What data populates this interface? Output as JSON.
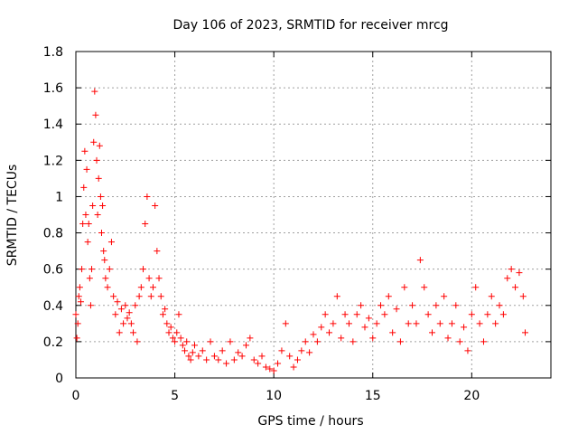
{
  "chart_data": {
    "type": "scatter",
    "title": "Day 106 of 2023, SRMTID for receiver mrcg",
    "xlabel": "GPS time / hours",
    "ylabel": "SRMTID / TECUs",
    "xlim": [
      0,
      24
    ],
    "ylim": [
      0,
      1.8
    ],
    "xticks": [
      0,
      5,
      10,
      15,
      20
    ],
    "xtick_labels": [
      "0",
      "5",
      "10",
      "15",
      "20"
    ],
    "yticks": [
      0,
      0.2,
      0.4,
      0.6,
      0.8,
      1.0,
      1.2,
      1.4,
      1.6,
      1.8
    ],
    "ytick_labels": [
      "0",
      "0.2",
      "0.4",
      "0.6",
      "0.8",
      "1",
      "1.2",
      "1.4",
      "1.6",
      "1.8"
    ],
    "grid": true,
    "marker": "plus",
    "color": "#ff0000",
    "series": [
      {
        "name": "SRMTID",
        "points": [
          [
            0.0,
            0.35
          ],
          [
            0.05,
            0.22
          ],
          [
            0.1,
            0.3
          ],
          [
            0.15,
            0.45
          ],
          [
            0.2,
            0.5
          ],
          [
            0.25,
            0.42
          ],
          [
            0.3,
            0.6
          ],
          [
            0.35,
            0.85
          ],
          [
            0.4,
            1.05
          ],
          [
            0.45,
            1.25
          ],
          [
            0.5,
            0.9
          ],
          [
            0.55,
            1.15
          ],
          [
            0.6,
            0.75
          ],
          [
            0.65,
            0.85
          ],
          [
            0.7,
            0.55
          ],
          [
            0.75,
            0.4
          ],
          [
            0.8,
            0.6
          ],
          [
            0.85,
            0.95
          ],
          [
            0.9,
            1.3
          ],
          [
            0.95,
            1.58
          ],
          [
            1.0,
            1.45
          ],
          [
            1.05,
            1.2
          ],
          [
            1.1,
            0.9
          ],
          [
            1.15,
            1.1
          ],
          [
            1.2,
            1.28
          ],
          [
            1.25,
            1.0
          ],
          [
            1.3,
            0.8
          ],
          [
            1.35,
            0.95
          ],
          [
            1.4,
            0.7
          ],
          [
            1.45,
            0.65
          ],
          [
            1.5,
            0.55
          ],
          [
            1.6,
            0.5
          ],
          [
            1.7,
            0.6
          ],
          [
            1.8,
            0.75
          ],
          [
            1.9,
            0.45
          ],
          [
            2.0,
            0.35
          ],
          [
            2.1,
            0.42
          ],
          [
            2.2,
            0.25
          ],
          [
            2.3,
            0.38
          ],
          [
            2.4,
            0.3
          ],
          [
            2.5,
            0.4
          ],
          [
            2.6,
            0.33
          ],
          [
            2.7,
            0.36
          ],
          [
            2.8,
            0.3
          ],
          [
            2.9,
            0.25
          ],
          [
            3.0,
            0.4
          ],
          [
            3.1,
            0.2
          ],
          [
            3.2,
            0.45
          ],
          [
            3.3,
            0.5
          ],
          [
            3.4,
            0.6
          ],
          [
            3.5,
            0.85
          ],
          [
            3.6,
            1.0
          ],
          [
            3.7,
            0.55
          ],
          [
            3.8,
            0.45
          ],
          [
            3.9,
            0.5
          ],
          [
            4.0,
            0.95
          ],
          [
            4.1,
            0.7
          ],
          [
            4.2,
            0.55
          ],
          [
            4.3,
            0.45
          ],
          [
            4.4,
            0.35
          ],
          [
            4.5,
            0.38
          ],
          [
            4.6,
            0.3
          ],
          [
            4.7,
            0.25
          ],
          [
            4.8,
            0.28
          ],
          [
            4.9,
            0.22
          ],
          [
            5.0,
            0.2
          ],
          [
            5.1,
            0.25
          ],
          [
            5.2,
            0.35
          ],
          [
            5.3,
            0.22
          ],
          [
            5.4,
            0.18
          ],
          [
            5.5,
            0.15
          ],
          [
            5.6,
            0.2
          ],
          [
            5.7,
            0.12
          ],
          [
            5.8,
            0.1
          ],
          [
            5.9,
            0.14
          ],
          [
            6.0,
            0.18
          ],
          [
            6.2,
            0.12
          ],
          [
            6.4,
            0.15
          ],
          [
            6.6,
            0.1
          ],
          [
            6.8,
            0.2
          ],
          [
            7.0,
            0.12
          ],
          [
            7.2,
            0.1
          ],
          [
            7.4,
            0.15
          ],
          [
            7.6,
            0.08
          ],
          [
            7.8,
            0.2
          ],
          [
            8.0,
            0.1
          ],
          [
            8.2,
            0.14
          ],
          [
            8.4,
            0.12
          ],
          [
            8.6,
            0.18
          ],
          [
            8.8,
            0.22
          ],
          [
            9.0,
            0.1
          ],
          [
            9.2,
            0.08
          ],
          [
            9.4,
            0.12
          ],
          [
            9.6,
            0.06
          ],
          [
            9.8,
            0.05
          ],
          [
            10.0,
            0.04
          ],
          [
            10.2,
            0.08
          ],
          [
            10.4,
            0.15
          ],
          [
            10.6,
            0.3
          ],
          [
            10.8,
            0.12
          ],
          [
            11.0,
            0.06
          ],
          [
            11.2,
            0.1
          ],
          [
            11.4,
            0.15
          ],
          [
            11.6,
            0.2
          ],
          [
            11.8,
            0.14
          ],
          [
            12.0,
            0.24
          ],
          [
            12.2,
            0.2
          ],
          [
            12.4,
            0.28
          ],
          [
            12.6,
            0.35
          ],
          [
            12.8,
            0.25
          ],
          [
            13.0,
            0.3
          ],
          [
            13.2,
            0.45
          ],
          [
            13.4,
            0.22
          ],
          [
            13.6,
            0.35
          ],
          [
            13.8,
            0.3
          ],
          [
            14.0,
            0.2
          ],
          [
            14.2,
            0.35
          ],
          [
            14.4,
            0.4
          ],
          [
            14.6,
            0.28
          ],
          [
            14.8,
            0.33
          ],
          [
            15.0,
            0.22
          ],
          [
            15.2,
            0.3
          ],
          [
            15.4,
            0.4
          ],
          [
            15.6,
            0.35
          ],
          [
            15.8,
            0.45
          ],
          [
            16.0,
            0.25
          ],
          [
            16.2,
            0.38
          ],
          [
            16.4,
            0.2
          ],
          [
            16.6,
            0.5
          ],
          [
            16.8,
            0.3
          ],
          [
            17.0,
            0.4
          ],
          [
            17.2,
            0.3
          ],
          [
            17.4,
            0.65
          ],
          [
            17.6,
            0.5
          ],
          [
            17.8,
            0.35
          ],
          [
            18.0,
            0.25
          ],
          [
            18.2,
            0.4
          ],
          [
            18.4,
            0.3
          ],
          [
            18.6,
            0.45
          ],
          [
            18.8,
            0.22
          ],
          [
            19.0,
            0.3
          ],
          [
            19.2,
            0.4
          ],
          [
            19.4,
            0.2
          ],
          [
            19.6,
            0.28
          ],
          [
            19.8,
            0.15
          ],
          [
            20.0,
            0.35
          ],
          [
            20.2,
            0.5
          ],
          [
            20.4,
            0.3
          ],
          [
            20.6,
            0.2
          ],
          [
            20.8,
            0.35
          ],
          [
            21.0,
            0.45
          ],
          [
            21.2,
            0.3
          ],
          [
            21.4,
            0.4
          ],
          [
            21.6,
            0.35
          ],
          [
            21.8,
            0.55
          ],
          [
            22.0,
            0.6
          ],
          [
            22.2,
            0.5
          ],
          [
            22.4,
            0.58
          ],
          [
            22.6,
            0.45
          ],
          [
            22.7,
            0.25
          ]
        ]
      }
    ]
  }
}
